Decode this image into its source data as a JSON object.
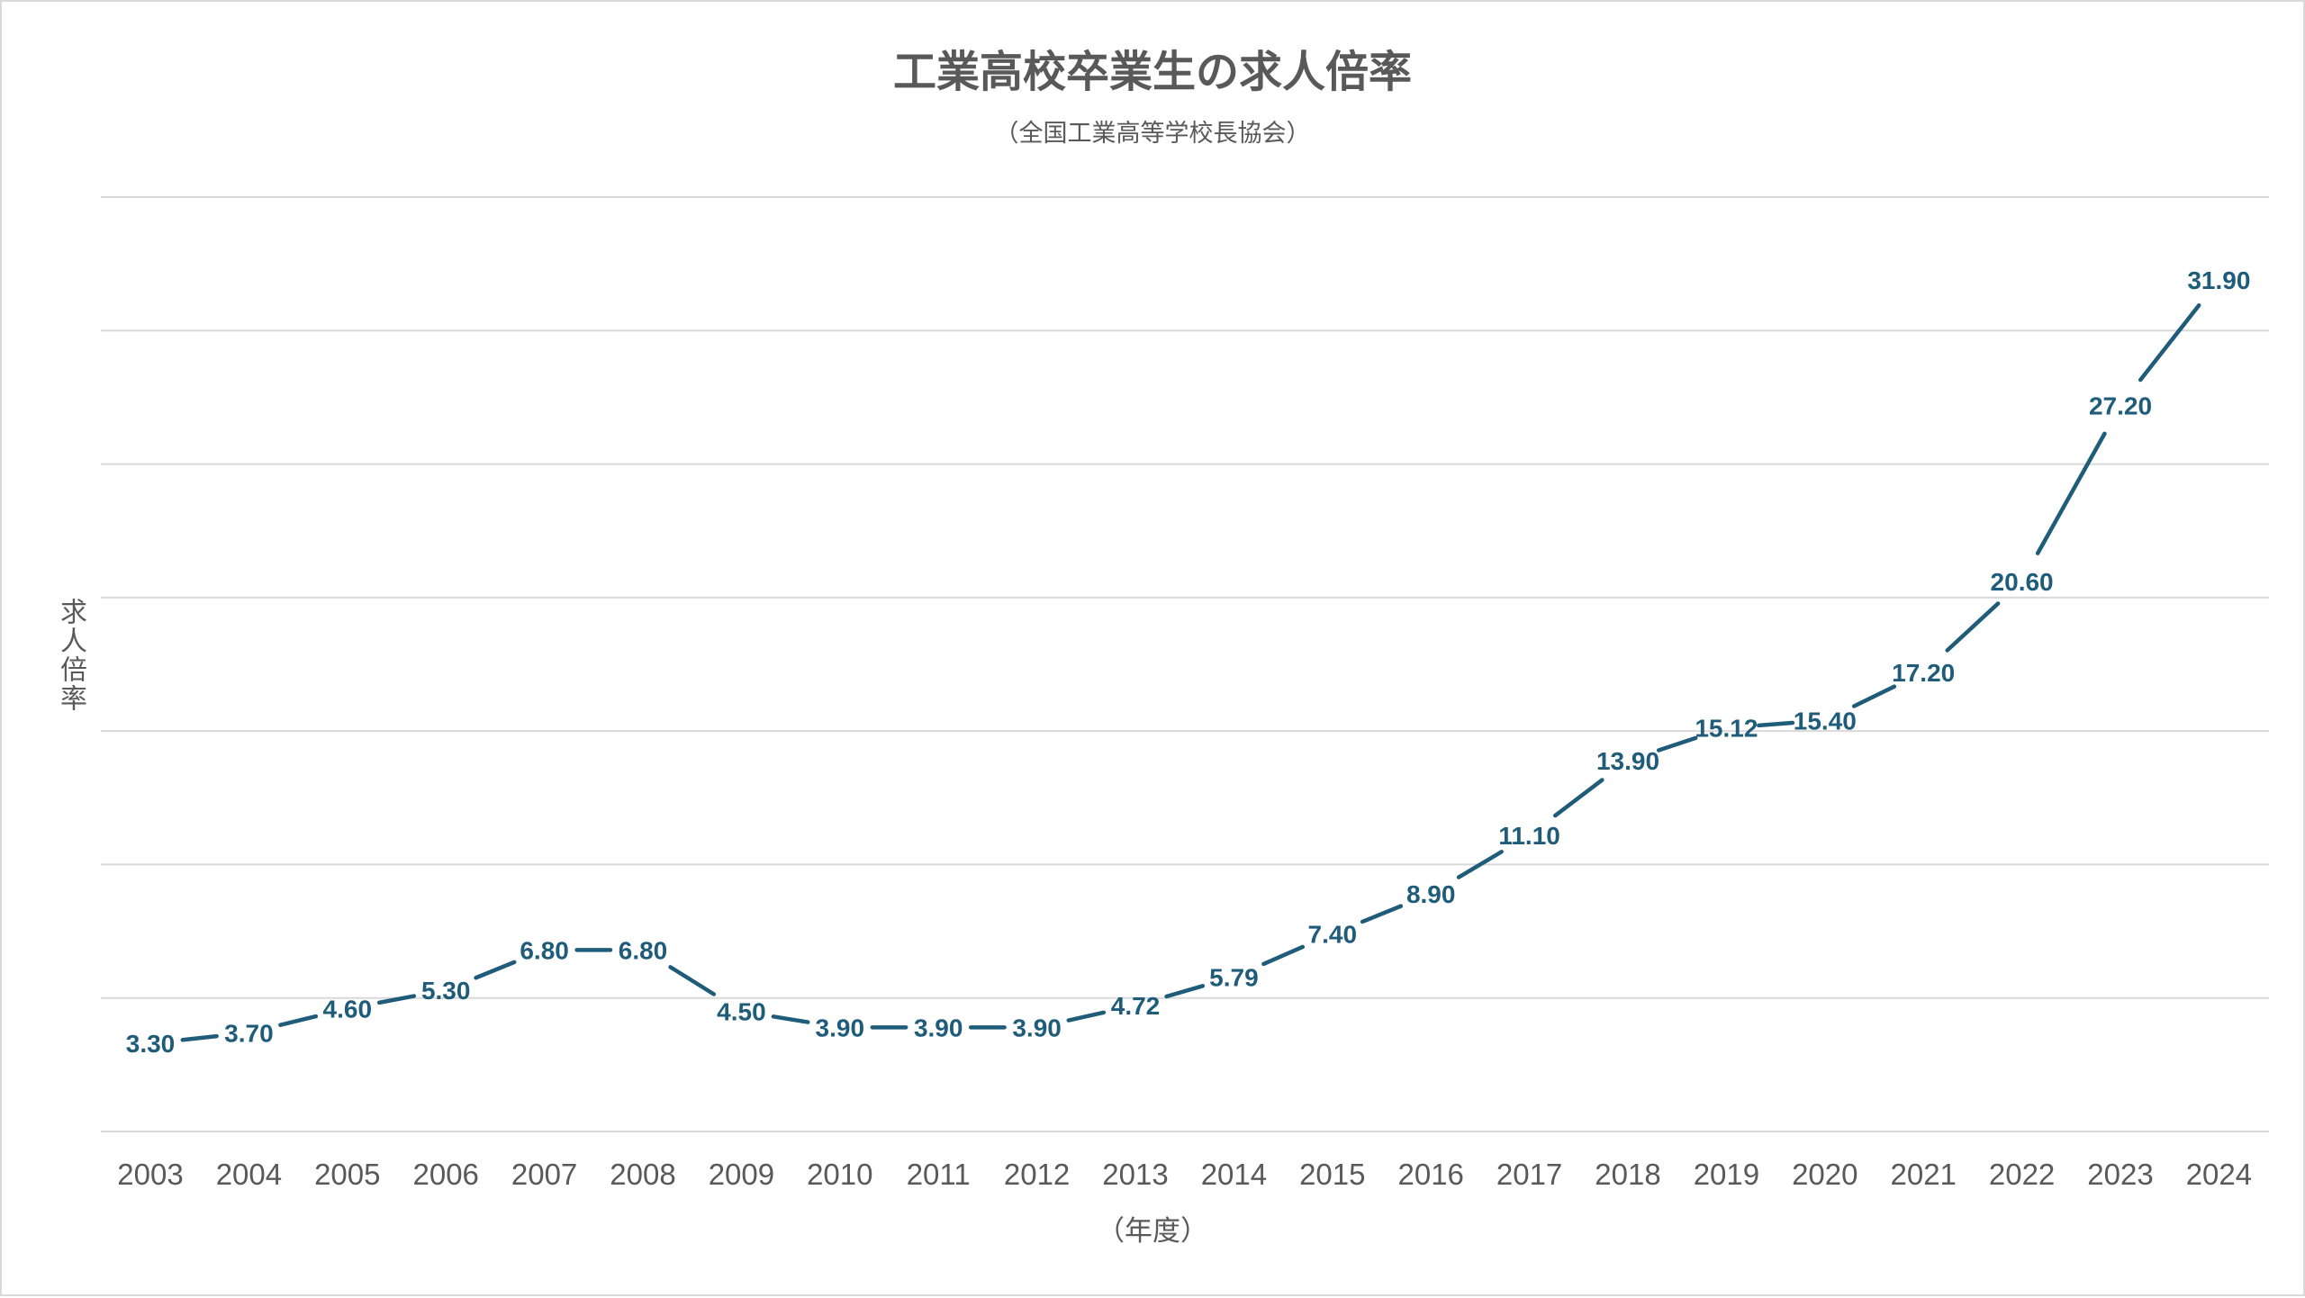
{
  "chart_data": {
    "type": "line",
    "title": "工業高校卒業生の求人倍率",
    "subtitle": "（全国工業高等学校長協会）",
    "ylabel": "求人倍率",
    "xlabel": "（年度）",
    "categories": [
      "2003",
      "2004",
      "2005",
      "2006",
      "2007",
      "2008",
      "2009",
      "2010",
      "2011",
      "2012",
      "2013",
      "2014",
      "2015",
      "2016",
      "2017",
      "2018",
      "2019",
      "2020",
      "2021",
      "2022",
      "2023",
      "2024"
    ],
    "series": [
      {
        "values": [
          3.3,
          3.7,
          4.6,
          5.3,
          6.8,
          6.8,
          4.5,
          3.9,
          3.9,
          3.9,
          4.72,
          5.79,
          7.4,
          8.9,
          11.1,
          13.9,
          15.12,
          15.4,
          17.2,
          20.6,
          27.2,
          31.9
        ],
        "labels": [
          "3.30",
          "3.70",
          "4.60",
          "5.30",
          "6.80",
          "6.80",
          "4.50",
          "3.90",
          "3.90",
          "3.90",
          "4.72",
          "5.79",
          "7.40",
          "8.90",
          "11.10",
          "13.90",
          "15.12",
          "15.40",
          "17.20",
          "20.60",
          "27.20",
          "31.90"
        ]
      }
    ],
    "ylim": [
      0,
      35
    ],
    "gridlines": true,
    "line_color": "#1f5c7a",
    "grid_color": "#d9d9d9"
  }
}
